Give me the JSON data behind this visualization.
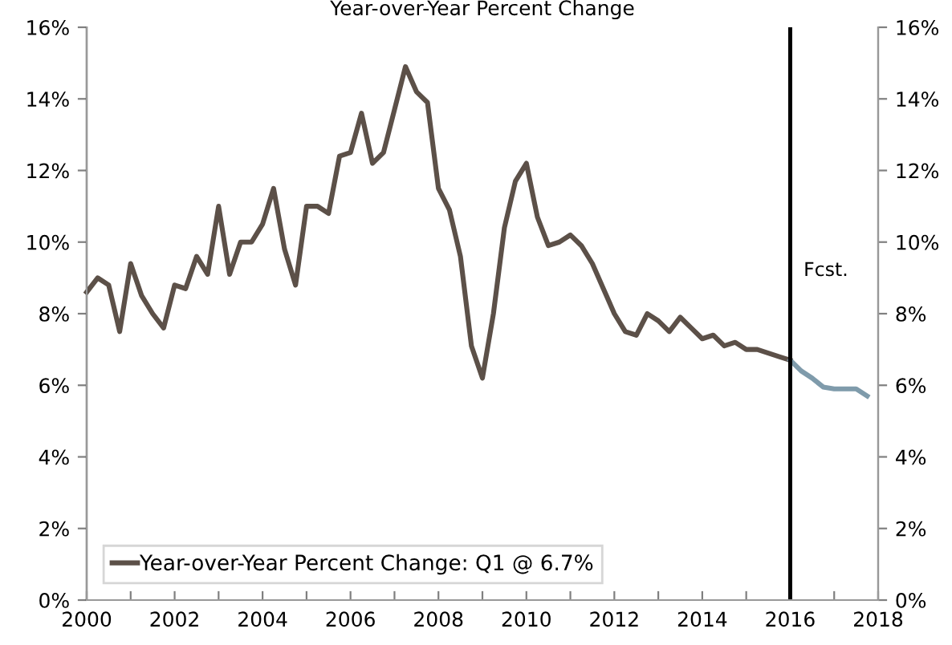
{
  "chart_data": {
    "type": "line",
    "title": "Year-over-Year Percent Change",
    "xlim": [
      2000,
      2018
    ],
    "xticks": [
      2000,
      {
        "value": 2001,
        "label": null
      },
      2002,
      {
        "value": 2003,
        "label": null
      },
      2004,
      {
        "value": 2005,
        "label": null
      },
      2006,
      {
        "value": 2007,
        "label": null
      },
      2008,
      {
        "value": 2009,
        "label": null
      },
      2010,
      {
        "value": 2011,
        "label": null
      },
      2012,
      {
        "value": 2013,
        "label": null
      },
      2014,
      {
        "value": 2015,
        "label": null
      },
      2016,
      {
        "value": 2017,
        "label": null
      },
      2018
    ],
    "ylim": [
      0,
      16
    ],
    "yticks": [
      {
        "value": 0,
        "label": "0%"
      },
      {
        "value": 2,
        "label": "2%"
      },
      {
        "value": 4,
        "label": "4%"
      },
      {
        "value": 6,
        "label": "6%"
      },
      {
        "value": 8,
        "label": "8%"
      },
      {
        "value": 10,
        "label": "10%"
      },
      {
        "value": 12,
        "label": "12%"
      },
      {
        "value": 14,
        "label": "14%"
      },
      {
        "value": 16,
        "label": "16%"
      }
    ],
    "y2lim": [
      0,
      16
    ],
    "y2ticks": [
      {
        "value": 0,
        "label": "0%"
      },
      {
        "value": 2,
        "label": "2%"
      },
      {
        "value": 4,
        "label": "4%"
      },
      {
        "value": 6,
        "label": "6%"
      },
      {
        "value": 8,
        "label": "8%"
      },
      {
        "value": 10,
        "label": "10%"
      },
      {
        "value": 12,
        "label": "12%"
      },
      {
        "value": 14,
        "label": "14%"
      },
      {
        "value": 16,
        "label": "16%"
      }
    ],
    "grid": false,
    "legend": "bottom left",
    "marker": "none",
    "line_style": "solid",
    "series": [
      {
        "name": "Year-over-Year Percent Change: Q1 @ 6.7%",
        "color": "#5c5048",
        "x": [
          2000,
          2000.25,
          2000.5,
          2000.75,
          2001,
          2001.25,
          2001.5,
          2001.75,
          2002,
          2002.25,
          2002.5,
          2002.75,
          2003,
          2003.25,
          2003.5,
          2003.75,
          2004,
          2004.25,
          2004.5,
          2004.75,
          2005,
          2005.25,
          2005.5,
          2005.75,
          2006,
          2006.25,
          2006.5,
          2006.75,
          2007,
          2007.25,
          2007.5,
          2007.75,
          2008,
          2008.25,
          2008.5,
          2008.75,
          2009,
          2009.25,
          2009.5,
          2009.75,
          2010,
          2010.25,
          2010.5,
          2010.75,
          2011,
          2011.25,
          2011.5,
          2011.75,
          2012,
          2012.25,
          2012.5,
          2012.75,
          2013,
          2013.25,
          2013.5,
          2013.75,
          2014,
          2014.25,
          2014.5,
          2014.75,
          2015,
          2015.25,
          2015.5,
          2015.75,
          2016
        ],
        "values": [
          8.6,
          9.0,
          8.8,
          7.5,
          9.4,
          8.5,
          8.0,
          7.6,
          8.8,
          8.7,
          9.6,
          9.1,
          11.0,
          9.1,
          10.0,
          10.0,
          10.5,
          11.5,
          9.8,
          8.8,
          11.0,
          11.0,
          10.8,
          12.4,
          12.5,
          13.6,
          12.2,
          12.5,
          13.7,
          14.9,
          14.2,
          13.9,
          11.5,
          10.9,
          9.6,
          7.1,
          6.2,
          8.0,
          10.4,
          11.7,
          12.2,
          10.7,
          9.9,
          10.0,
          10.2,
          9.9,
          9.4,
          8.7,
          8.0,
          7.5,
          7.4,
          8.0,
          7.8,
          7.5,
          7.9,
          7.6,
          7.3,
          7.4,
          7.1,
          7.2,
          7.0,
          7.0,
          6.9,
          6.8,
          6.7
        ]
      },
      {
        "color": "#7f9bab",
        "x": [
          2016,
          2016.25,
          2016.5,
          2016.75,
          2017,
          2017.25,
          2017.5,
          2017.75
        ],
        "values": [
          6.7,
          6.4,
          6.2,
          5.95,
          5.9,
          5.9,
          5.9,
          5.7
        ]
      }
    ],
    "ref_lines": [
      {
        "axis": "x",
        "value": 2016,
        "label": "Fcst.",
        "color": "#000000"
      }
    ]
  }
}
